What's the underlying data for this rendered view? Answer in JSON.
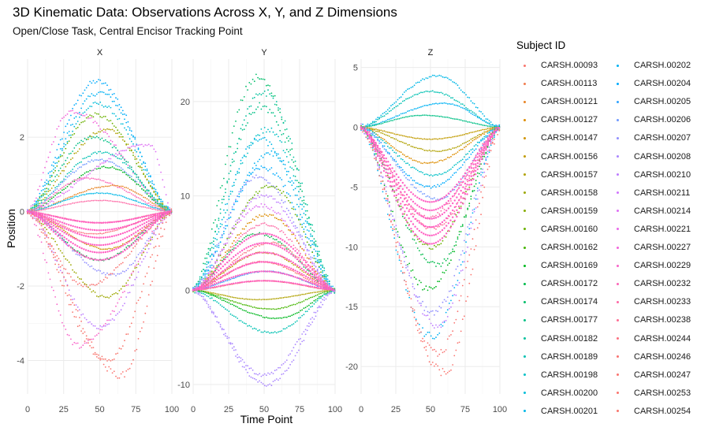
{
  "title": "3D Kinematic Data: Observations Across X, Y, and Z Dimensions",
  "subtitle": "Open/Close Task, Central Encisor Tracking Point",
  "legend_title": "Subject ID",
  "chart_data": {
    "type": "scatter",
    "title": "3D Kinematic Data: Observations Across X, Y, and Z Dimensions",
    "subtitle": "Open/Close Task, Central Encisor Tracking Point",
    "xlabel": "Time Point",
    "ylabel": "Position",
    "legend_title": "Subject ID",
    "legend_position": "right",
    "grid": true,
    "subjects": [
      {
        "name": "CARSH.00093",
        "color": "#F8766D"
      },
      {
        "name": "CARSH.00113",
        "color": "#F17D50"
      },
      {
        "name": "CARSH.00121",
        "color": "#E88526"
      },
      {
        "name": "CARSH.00127",
        "color": "#DD8D00"
      },
      {
        "name": "CARSH.00147",
        "color": "#D09400"
      },
      {
        "name": "CARSH.00156",
        "color": "#C19B00"
      },
      {
        "name": "CARSH.00157",
        "color": "#B0A100"
      },
      {
        "name": "CARSH.00158",
        "color": "#9DA700"
      },
      {
        "name": "CARSH.00159",
        "color": "#86AC00"
      },
      {
        "name": "CARSH.00160",
        "color": "#6BB100"
      },
      {
        "name": "CARSH.00162",
        "color": "#44B500"
      },
      {
        "name": "CARSH.00169",
        "color": "#00B81F"
      },
      {
        "name": "CARSH.00172",
        "color": "#00BB4B"
      },
      {
        "name": "CARSH.00174",
        "color": "#00BE6A"
      },
      {
        "name": "CARSH.00177",
        "color": "#00C085"
      },
      {
        "name": "CARSH.00182",
        "color": "#00C19D"
      },
      {
        "name": "CARSH.00189",
        "color": "#00C1B2"
      },
      {
        "name": "CARSH.00198",
        "color": "#00C0C6"
      },
      {
        "name": "CARSH.00200",
        "color": "#00BDD8"
      },
      {
        "name": "CARSH.00201",
        "color": "#00B8E7"
      },
      {
        "name": "CARSH.00202",
        "color": "#00B2F3"
      },
      {
        "name": "CARSH.00204",
        "color": "#00ABFD"
      },
      {
        "name": "CARSH.00205",
        "color": "#30A2FF"
      },
      {
        "name": "CARSH.00206",
        "color": "#7099FF"
      },
      {
        "name": "CARSH.00207",
        "color": "#918FFF"
      },
      {
        "name": "CARSH.00208",
        "color": "#AA86FF"
      },
      {
        "name": "CARSH.00210",
        "color": "#BE7DFF"
      },
      {
        "name": "CARSH.00211",
        "color": "#D075FD"
      },
      {
        "name": "CARSH.00214",
        "color": "#DE6FF4"
      },
      {
        "name": "CARSH.00221",
        "color": "#E969E9"
      },
      {
        "name": "CARSH.00227",
        "color": "#F266DA"
      },
      {
        "name": "CARSH.00229",
        "color": "#F865CA"
      },
      {
        "name": "CARSH.00232",
        "color": "#FC66B8"
      },
      {
        "name": "CARSH.00233",
        "color": "#FE69A5"
      },
      {
        "name": "CARSH.00238",
        "color": "#FE6D93"
      },
      {
        "name": "CARSH.00244",
        "color": "#FC7181"
      },
      {
        "name": "CARSH.00246",
        "color": "#F97472"
      },
      {
        "name": "CARSH.00247",
        "color": "#FA7570"
      },
      {
        "name": "CARSH.00253",
        "color": "#FB746E"
      },
      {
        "name": "CARSH.00254",
        "color": "#F8766D"
      }
    ],
    "panels": [
      {
        "label": "X",
        "xlim": [
          0,
          100
        ],
        "ylim": [
          -4.9,
          4.1
        ],
        "xticks": [
          0,
          25,
          50,
          75,
          100
        ],
        "yticks": [
          -4,
          -2,
          0,
          2
        ],
        "ytick_labels": [
          "-4",
          "-2",
          "0",
          "2"
        ],
        "envelope": {
          "upper": 3.5,
          "lower": -4.4
        },
        "series": [
          {
            "subject": 21,
            "peak": 3.5,
            "center": 48
          },
          {
            "subject": 20,
            "peak": 3.2,
            "center": 50
          },
          {
            "subject": 18,
            "peak": 2.9,
            "center": 49
          },
          {
            "subject": 9,
            "peak": 2.6,
            "center": 47
          },
          {
            "subject": 30,
            "peak": 2.7,
            "center": 30
          },
          {
            "subject": 6,
            "peak": 2.2,
            "center": 55
          },
          {
            "subject": 14,
            "peak": 2.0,
            "center": 45
          },
          {
            "subject": 16,
            "peak": 1.6,
            "center": 52
          },
          {
            "subject": 23,
            "peak": 1.4,
            "center": 50
          },
          {
            "subject": 11,
            "peak": 1.2,
            "center": 55
          },
          {
            "subject": 28,
            "peak": 1.8,
            "center": 85
          },
          {
            "subject": 32,
            "peak": 0.9,
            "center": 40
          },
          {
            "subject": 2,
            "peak": 0.7,
            "center": 60
          },
          {
            "subject": 19,
            "peak": 0.5,
            "center": 50
          },
          {
            "subject": 33,
            "peak": 0.3,
            "center": 50
          },
          {
            "subject": 34,
            "peak": -0.3,
            "center": 50
          },
          {
            "subject": 35,
            "peak": -0.6,
            "center": 45
          },
          {
            "subject": 4,
            "peak": -1.0,
            "center": 55
          },
          {
            "subject": 12,
            "peak": -1.3,
            "center": 50
          },
          {
            "subject": 24,
            "peak": -1.7,
            "center": 60
          },
          {
            "subject": 36,
            "peak": -2.0,
            "center": 40
          },
          {
            "subject": 7,
            "peak": -2.3,
            "center": 55
          },
          {
            "subject": 26,
            "peak": -3.1,
            "center": 50
          },
          {
            "subject": 31,
            "peak": -3.6,
            "center": 35
          },
          {
            "subject": 39,
            "peak": -4.0,
            "center": 55
          },
          {
            "subject": 37,
            "peak": -4.4,
            "center": 65
          }
        ]
      },
      {
        "label": "Y",
        "xlim": [
          0,
          100
        ],
        "ylim": [
          -11,
          24.5
        ],
        "xticks": [
          0,
          25,
          50,
          75,
          100
        ],
        "yticks": [
          -10,
          0,
          10,
          20
        ],
        "ytick_labels": [
          "-10",
          "0",
          "10",
          "20"
        ],
        "envelope": {
          "upper": 22.5,
          "lower": -10
        },
        "series": [
          {
            "subject": 13,
            "peak": 22.5,
            "center": 45
          },
          {
            "subject": 15,
            "peak": 21.0,
            "center": 50
          },
          {
            "subject": 14,
            "peak": 19.5,
            "center": 48
          },
          {
            "subject": 17,
            "peak": 17.0,
            "center": 52
          },
          {
            "subject": 19,
            "peak": 16.0,
            "center": 47
          },
          {
            "subject": 20,
            "peak": 14.5,
            "center": 55
          },
          {
            "subject": 21,
            "peak": 13.0,
            "center": 50
          },
          {
            "subject": 24,
            "peak": 12.0,
            "center": 45
          },
          {
            "subject": 9,
            "peak": 11.0,
            "center": 55
          },
          {
            "subject": 26,
            "peak": 10.0,
            "center": 50
          },
          {
            "subject": 28,
            "peak": 9.0,
            "center": 48
          },
          {
            "subject": 3,
            "peak": 8.0,
            "center": 52
          },
          {
            "subject": 33,
            "peak": 7.0,
            "center": 50
          },
          {
            "subject": 12,
            "peak": 6.0,
            "center": 45
          },
          {
            "subject": 35,
            "peak": 5.0,
            "center": 55
          },
          {
            "subject": 5,
            "peak": 4.0,
            "center": 50
          },
          {
            "subject": 38,
            "peak": 3.0,
            "center": 48
          },
          {
            "subject": 22,
            "peak": 2.0,
            "center": 52
          },
          {
            "subject": 1,
            "peak": 1.0,
            "center": 50
          },
          {
            "subject": 6,
            "peak": -1.0,
            "center": 45
          },
          {
            "subject": 10,
            "peak": -2.0,
            "center": 55
          },
          {
            "subject": 11,
            "peak": -3.0,
            "center": 60
          },
          {
            "subject": 16,
            "peak": -4.5,
            "center": 55
          },
          {
            "subject": 25,
            "peak": -9.0,
            "center": 50
          },
          {
            "subject": 25,
            "peak": -10.0,
            "center": 52
          }
        ]
      },
      {
        "label": "Z",
        "xlim": [
          0,
          100
        ],
        "ylim": [
          -22.3,
          5.7
        ],
        "xticks": [
          0,
          25,
          50,
          75,
          100
        ],
        "yticks": [
          -20,
          -15,
          -10,
          -5,
          0,
          5
        ],
        "ytick_labels": [
          "-20",
          "-15",
          "-10",
          "-5",
          "0",
          "5"
        ],
        "envelope": {
          "upper": 4.3,
          "lower": -21
        },
        "series": [
          {
            "subject": 19,
            "peak": 4.3,
            "center": 55
          },
          {
            "subject": 16,
            "peak": 3.0,
            "center": 50
          },
          {
            "subject": 20,
            "peak": 2.0,
            "center": 60
          },
          {
            "subject": 14,
            "peak": 1.0,
            "center": 45
          },
          {
            "subject": 5,
            "peak": -1.0,
            "center": 50
          },
          {
            "subject": 6,
            "peak": -2.0,
            "center": 55
          },
          {
            "subject": 3,
            "peak": -3.0,
            "center": 48
          },
          {
            "subject": 17,
            "peak": -4.0,
            "center": 52
          },
          {
            "subject": 21,
            "peak": -5.0,
            "center": 50
          },
          {
            "subject": 23,
            "peak": -6.0,
            "center": 55
          },
          {
            "subject": 33,
            "peak": -7.5,
            "center": 48
          },
          {
            "subject": 34,
            "peak": -8.5,
            "center": 52
          },
          {
            "subject": 9,
            "peak": -10.0,
            "center": 50
          },
          {
            "subject": 12,
            "peak": -11.5,
            "center": 55
          },
          {
            "subject": 11,
            "peak": -13.5,
            "center": 48
          },
          {
            "subject": 24,
            "peak": -15.5,
            "center": 52
          },
          {
            "subject": 26,
            "peak": -16.5,
            "center": 55
          },
          {
            "subject": 20,
            "peak": -17.5,
            "center": 50
          },
          {
            "subject": 36,
            "peak": -19.0,
            "center": 55
          },
          {
            "subject": 38,
            "peak": -20.5,
            "center": 60
          }
        ]
      }
    ]
  }
}
